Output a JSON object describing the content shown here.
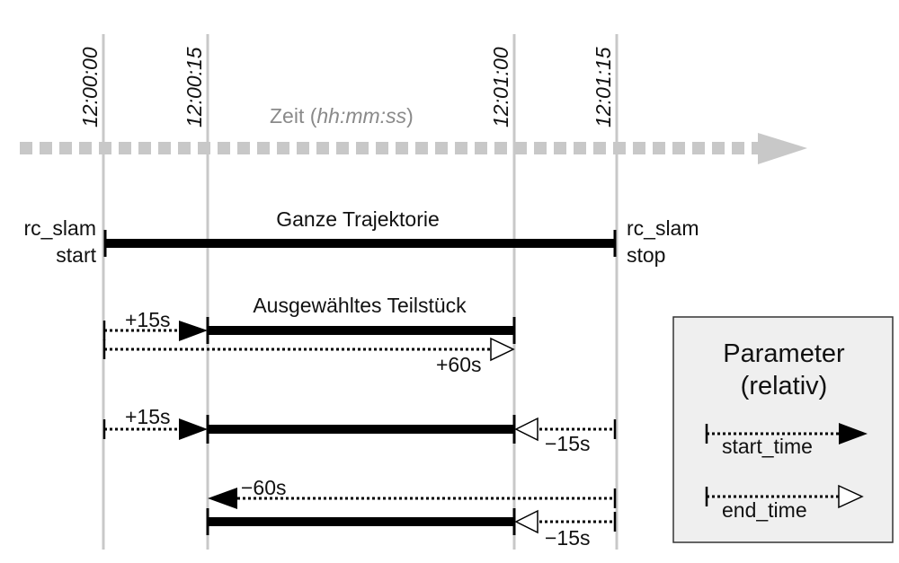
{
  "timeline": {
    "ticks": [
      "12:00:00",
      "12:00:15",
      "12:01:00",
      "12:01:15"
    ],
    "axis_label_prefix": "Zeit (",
    "axis_label_unit": "hh:mm:ss",
    "axis_label_suffix": ")"
  },
  "trajectory": {
    "title": "Ganze Trajektorie",
    "start_line1": "rc_slam",
    "start_line2": "start",
    "stop_line1": "rc_slam",
    "stop_line2": "stop"
  },
  "segment": {
    "title": "Ausgewähltes Teilstück"
  },
  "examples": {
    "ex1_start": "+15s",
    "ex1_end": "+60s",
    "ex2_start": "+15s",
    "ex2_end": "−15s",
    "ex3_start": "−60s",
    "ex3_end": "−15s"
  },
  "legend": {
    "title_line1": "Parameter",
    "title_line2": "(relativ)",
    "start_label": "start_time",
    "end_label": "end_time"
  },
  "colors": {
    "guide": "#c8c8c8",
    "axis": "#c8c8c8",
    "bar": "#000000",
    "legend_bg": "#efefef"
  }
}
